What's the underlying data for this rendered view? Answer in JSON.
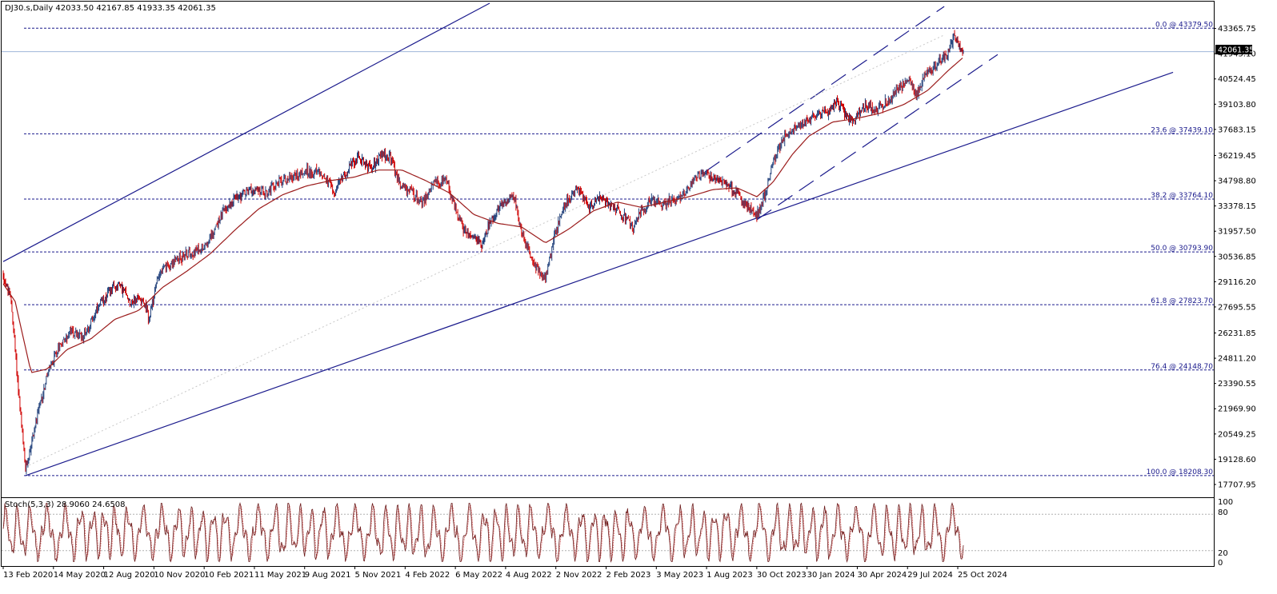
{
  "header": {
    "text": "DJ30.s,Daily  42033.50 42167.85 41933.35 42061.35"
  },
  "stoch": {
    "label": "Stoch(5,3,3) 28.9060 24.6508",
    "levels": [
      "100",
      "80",
      "20",
      "0"
    ]
  },
  "price_badge": "42061.35",
  "colors": {
    "background": "#ffffff",
    "candle_up": "#1f3f7a",
    "candle_down": "#d00000",
    "moving_average": "#9b1c1c",
    "channel_lines": "#1a1a8c",
    "fib_lines": "#1a1a8c",
    "stoch_main": "#6b1a1a"
  },
  "chart_data": {
    "type": "candlestick",
    "symbol": "DJ30.s",
    "timeframe": "Daily",
    "ylim": [
      17707.95,
      44786.0
    ],
    "y_ticks": [
      "43365.75",
      "41945.10",
      "40524.45",
      "39103.80",
      "37683.15",
      "36219.45",
      "34798.80",
      "33378.15",
      "31957.50",
      "30536.85",
      "29116.20",
      "27695.55",
      "26231.85",
      "24811.20",
      "23390.55",
      "21969.90",
      "20549.25",
      "19128.60",
      "17707.95"
    ],
    "x_ticks": [
      "13 Feb 2020",
      "14 May 2020",
      "12 Aug 2020",
      "10 Nov 2020",
      "10 Feb 2021",
      "11 May 2021",
      "9 Aug 2021",
      "5 Nov 2021",
      "4 Feb 2022",
      "6 May 2022",
      "4 Aug 2022",
      "2 Nov 2022",
      "2 Feb 2023",
      "3 May 2023",
      "1 Aug 2023",
      "30 Oct 2023",
      "30 Jan 2024",
      "30 Apr 2024",
      "29 Jul 2024",
      "25 Oct 2024"
    ],
    "x_tick_index": [
      0,
      63,
      126,
      189,
      252,
      315,
      378,
      441,
      504,
      567,
      630,
      693,
      756,
      819,
      882,
      945,
      1008,
      1071,
      1134,
      1197
    ],
    "last_ohlc": {
      "open": 42033.5,
      "high": 42167.85,
      "low": 41933.35,
      "close": 42061.35
    },
    "price_path": [
      [
        0,
        29500
      ],
      [
        10,
        28000
      ],
      [
        20,
        22500
      ],
      [
        28,
        18500
      ],
      [
        40,
        21000
      ],
      [
        55,
        23800
      ],
      [
        70,
        25500
      ],
      [
        85,
        26300
      ],
      [
        100,
        26000
      ],
      [
        115,
        27300
      ],
      [
        130,
        28400
      ],
      [
        145,
        29000
      ],
      [
        160,
        28000
      ],
      [
        175,
        28200
      ],
      [
        183,
        27000
      ],
      [
        195,
        29600
      ],
      [
        210,
        30100
      ],
      [
        230,
        30700
      ],
      [
        245,
        30900
      ],
      [
        260,
        31600
      ],
      [
        275,
        33000
      ],
      [
        290,
        33800
      ],
      [
        310,
        34300
      ],
      [
        330,
        34100
      ],
      [
        345,
        34700
      ],
      [
        360,
        35000
      ],
      [
        380,
        35300
      ],
      [
        400,
        35200
      ],
      [
        415,
        34200
      ],
      [
        430,
        35300
      ],
      [
        445,
        36200
      ],
      [
        460,
        35500
      ],
      [
        475,
        36300
      ],
      [
        485,
        36100
      ],
      [
        498,
        34500
      ],
      [
        510,
        34200
      ],
      [
        525,
        33600
      ],
      [
        540,
        34600
      ],
      [
        555,
        34800
      ],
      [
        565,
        33500
      ],
      [
        578,
        32000
      ],
      [
        590,
        31600
      ],
      [
        600,
        31100
      ],
      [
        610,
        32500
      ],
      [
        625,
        33500
      ],
      [
        640,
        34000
      ],
      [
        650,
        32000
      ],
      [
        660,
        30600
      ],
      [
        672,
        29700
      ],
      [
        680,
        29300
      ],
      [
        692,
        31800
      ],
      [
        705,
        33500
      ],
      [
        720,
        34400
      ],
      [
        735,
        33400
      ],
      [
        750,
        33800
      ],
      [
        770,
        33200
      ],
      [
        790,
        32100
      ],
      [
        800,
        33100
      ],
      [
        815,
        33700
      ],
      [
        830,
        33500
      ],
      [
        845,
        33800
      ],
      [
        860,
        34400
      ],
      [
        875,
        35300
      ],
      [
        890,
        35000
      ],
      [
        905,
        34600
      ],
      [
        920,
        34100
      ],
      [
        935,
        33200
      ],
      [
        945,
        32800
      ],
      [
        955,
        34000
      ],
      [
        965,
        35700
      ],
      [
        980,
        37300
      ],
      [
        995,
        37800
      ],
      [
        1010,
        38300
      ],
      [
        1025,
        38600
      ],
      [
        1035,
        38700
      ],
      [
        1045,
        39200
      ],
      [
        1055,
        38700
      ],
      [
        1065,
        38000
      ],
      [
        1080,
        39000
      ],
      [
        1095,
        38800
      ],
      [
        1110,
        39300
      ],
      [
        1125,
        40000
      ],
      [
        1135,
        40600
      ],
      [
        1145,
        39500
      ],
      [
        1155,
        40700
      ],
      [
        1165,
        41000
      ],
      [
        1175,
        41600
      ],
      [
        1185,
        42000
      ],
      [
        1192,
        42900
      ],
      [
        1198,
        42500
      ],
      [
        1203,
        42061
      ]
    ],
    "moving_average_path": [
      [
        0,
        29000
      ],
      [
        15,
        28000
      ],
      [
        35,
        24000
      ],
      [
        55,
        24200
      ],
      [
        80,
        25300
      ],
      [
        110,
        25900
      ],
      [
        140,
        27000
      ],
      [
        170,
        27500
      ],
      [
        200,
        28800
      ],
      [
        230,
        29700
      ],
      [
        260,
        30700
      ],
      [
        290,
        32000
      ],
      [
        320,
        33200
      ],
      [
        350,
        34000
      ],
      [
        380,
        34500
      ],
      [
        410,
        34800
      ],
      [
        440,
        35000
      ],
      [
        470,
        35400
      ],
      [
        500,
        35400
      ],
      [
        530,
        34800
      ],
      [
        560,
        34100
      ],
      [
        590,
        32900
      ],
      [
        620,
        32400
      ],
      [
        650,
        32200
      ],
      [
        680,
        31300
      ],
      [
        710,
        32100
      ],
      [
        740,
        33100
      ],
      [
        770,
        33600
      ],
      [
        800,
        33300
      ],
      [
        830,
        33600
      ],
      [
        860,
        33900
      ],
      [
        890,
        34300
      ],
      [
        920,
        34400
      ],
      [
        945,
        33900
      ],
      [
        965,
        34700
      ],
      [
        990,
        36300
      ],
      [
        1010,
        37300
      ],
      [
        1040,
        38100
      ],
      [
        1070,
        38300
      ],
      [
        1100,
        38600
      ],
      [
        1130,
        39100
      ],
      [
        1160,
        39900
      ],
      [
        1185,
        41000
      ],
      [
        1203,
        41700
      ]
    ],
    "fibonacci_levels": [
      {
        "label": "0.0 @ 43379.50",
        "value": 43379.5
      },
      {
        "label": "23.6 @ 37439.10",
        "value": 37439.1
      },
      {
        "label": "38.2 @ 33764.10",
        "value": 33764.1
      },
      {
        "label": "50.0 @ 30793.90",
        "value": 30793.9
      },
      {
        "label": "61.8 @ 27823.70",
        "value": 27823.7
      },
      {
        "label": "76.4 @ 24148.70",
        "value": 24148.7
      },
      {
        "label": "100.0 @ 18208.30",
        "value": 18208.3
      }
    ],
    "current_price_line": 42061.35,
    "trendlines": {
      "main_channel_upper": [
        [
          0,
          30250
        ],
        [
          610,
          44786
        ]
      ],
      "main_channel_lower": [
        [
          28,
          18208
        ],
        [
          945,
          32700
        ],
        [
          1467,
          40900
        ]
      ],
      "short_channel_upper": [
        [
          880,
          35300
        ],
        [
          1180,
          44600
        ]
      ],
      "short_channel_lower": [
        [
          945,
          32600
        ],
        [
          1247,
          41900
        ]
      ],
      "dotted_midline": [
        [
          28,
          18700
        ],
        [
          1180,
          43000
        ]
      ]
    },
    "stochastic": {
      "k": 28.906,
      "d": 24.6508,
      "overbought": 80,
      "oversold": 20
    }
  }
}
